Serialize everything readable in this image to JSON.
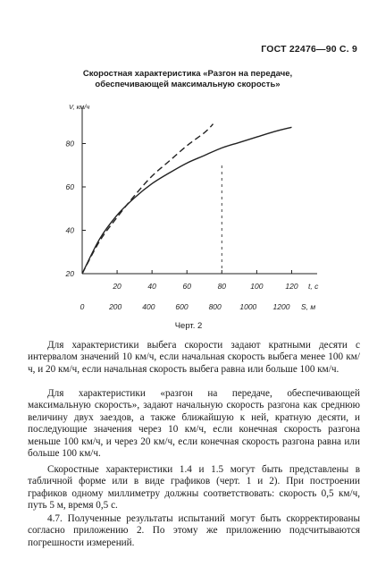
{
  "header": "ГОСТ 22476—90 С. 9",
  "chart_title": [
    "Скоростная характеристика «Разгон на передаче,",
    "обеспечивающей максимальную скорость»"
  ],
  "caption": "Черт. 2",
  "chart_data": {
    "type": "line",
    "title": "Скоростная характеристика «Разгон на передаче, обеспечивающей максимальную скорость»",
    "ylabel": "V, км/ч",
    "xlabel": "t, с",
    "x2label": "S, м",
    "ylim": [
      20,
      100
    ],
    "xlim": [
      0,
      130
    ],
    "y_ticks": [
      20,
      40,
      60,
      80
    ],
    "x_ticks": [
      20,
      40,
      60,
      80,
      100,
      120
    ],
    "x2_ticks": [
      "0",
      "200",
      "400",
      "600",
      "800",
      "1000",
      "1200"
    ],
    "grid": false,
    "series": [
      {
        "style": "solid",
        "x": [
          0,
          10,
          20,
          30,
          40,
          50,
          60,
          70,
          80,
          90,
          100,
          110,
          120
        ],
        "y": [
          20,
          36,
          47,
          55,
          61.5,
          66.5,
          71,
          74.5,
          78,
          80.5,
          83,
          85.5,
          87.5
        ]
      },
      {
        "style": "dashed",
        "x": [
          0,
          10,
          20,
          30,
          40,
          50,
          60,
          70,
          75
        ],
        "y": [
          20,
          35,
          46,
          56,
          65,
          72,
          79,
          85,
          89
        ]
      }
    ],
    "vertical_marker_x": 80
  },
  "paragraphs": [
    "Для характеристики выбега скорости задают кратными десяти с интервалом значений 10 км/ч, если начальная скорость выбега менее 100 км/ч, и 20 км/ч, если начальная скорость выбега равна или больше 100 км/ч.",
    "Для характеристики «разгон на передаче, обеспечивающей максимальную скорость», задают начальную скорость разгона как среднюю величину двух заездов, а также ближайшую к ней, кратную десяти, и последующие значения через 10 км/ч, если конечная скорость разгона меньше 100 км/ч, и через 20 км/ч, если конечная скорость разгона равна или больше 100 км/ч.",
    "Скоростные характеристики 1.4 и 1.5 могут быть представлены в табличной форме или в виде графиков (черт. 1 и 2). При построении графиков одному миллиметру должны соответствовать: скорость 0,5 км/ч, путь 5 м, время 0,5 с.",
    "4.7. Полученные результаты испытаний могут быть скорректированы согласно приложению 2. По этому же приложению подсчитываются погрешности измерений."
  ]
}
